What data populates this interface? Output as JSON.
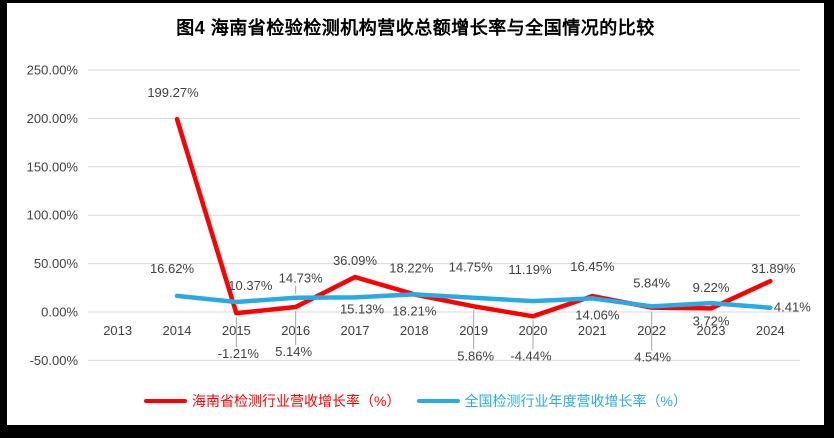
{
  "title": "图4  海南省检验检测机构营收总额增长率与全国情况的比较",
  "colors": {
    "hainan_red": "#FE0000",
    "national_blue": "#29ABE2",
    "gridline": "#D9D9D9",
    "leader_line": "#A6A6A6",
    "label_text": "#404040",
    "frame": "#000000",
    "panel": "#FFFFFF"
  },
  "chart_data": {
    "type": "line",
    "title": "图4  海南省检验检测机构营收总额增长率与全国情况的比较",
    "xlabel": "",
    "ylabel": "",
    "grid": true,
    "legend_position": "bottom",
    "categories": [
      "2013",
      "2014",
      "2015",
      "2016",
      "2017",
      "2018",
      "2019",
      "2020",
      "2021",
      "2022",
      "2023",
      "2024"
    ],
    "y_axis": {
      "min": -50,
      "max": 250,
      "step": 50,
      "ticks": [
        "250.00%",
        "200.00%",
        "150.00%",
        "100.00%",
        "50.00%",
        "0.00%",
        "-50.00%"
      ]
    },
    "series": [
      {
        "name": "海南省检测行业营收增长率（%）",
        "color": "#FE0000",
        "points": [
          null,
          {
            "v": 199.27,
            "label": "199.27%",
            "dx": -4,
            "dy": -22
          },
          {
            "v": -1.21,
            "label": "-1.21%",
            "dx": 2,
            "dy": 45,
            "leader": true
          },
          {
            "v": 5.14,
            "label": "5.14%",
            "dx": -2,
            "dy": 49,
            "leader": true
          },
          {
            "v": 36.09,
            "label": "36.09%",
            "dx": 0,
            "dy": -12
          },
          {
            "v": 18.21,
            "label": "18.21%",
            "dx": 0,
            "dy": 21
          },
          {
            "v": 5.86,
            "label": "5.86%",
            "dx": 2,
            "dy": 54,
            "leader": true
          },
          {
            "v": -4.44,
            "label": "-4.44%",
            "dx": -2,
            "dy": 44,
            "leader": true
          },
          {
            "v": 16.45,
            "label": "16.45%",
            "dx": 0,
            "dy": -25
          },
          {
            "v": 4.54,
            "label": "4.54%",
            "dx": 1,
            "dy": 54,
            "leader": true
          },
          {
            "v": 3.72,
            "label": "3.72%",
            "dx": 0,
            "dy": 17
          },
          {
            "v": 31.89,
            "label": "31.89%",
            "dx": 3,
            "dy": -8
          }
        ]
      },
      {
        "name": "全国检测行业年度营收增长率（%）",
        "color": "#29ABE2",
        "points": [
          null,
          {
            "v": 16.62,
            "label": "16.62%",
            "dx": -5,
            "dy": -23
          },
          {
            "v": 10.37,
            "label": "10.37%",
            "dx": 14,
            "dy": -12
          },
          {
            "v": 14.73,
            "label": "14.73%",
            "dx": 5,
            "dy": -15,
            "leader": true
          },
          {
            "v": 15.13,
            "label": "15.13%",
            "dx": 7,
            "dy": 16
          },
          {
            "v": 18.22,
            "label": "18.22%",
            "dx": -3,
            "dy": -22
          },
          {
            "v": 14.75,
            "label": "14.75%",
            "dx": -3,
            "dy": -26
          },
          {
            "v": 11.19,
            "label": "11.19%",
            "dx": -3,
            "dy": -27
          },
          {
            "v": 14.06,
            "label": "14.06%",
            "dx": 5,
            "dy": 21
          },
          {
            "v": 5.84,
            "label": "5.84%",
            "dx": 0,
            "dy": -19
          },
          {
            "v": 9.22,
            "label": "9.22%",
            "dx": 0,
            "dy": -11
          },
          {
            "v": 4.41,
            "label": "4.41%",
            "dx": 22,
            "dy": 4
          }
        ]
      }
    ]
  }
}
